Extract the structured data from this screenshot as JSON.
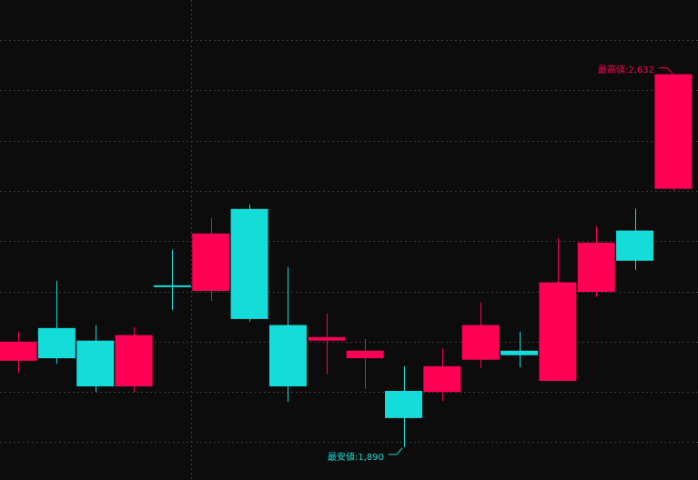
{
  "chart_data": {
    "type": "candlestick",
    "ylim": [
      1850,
      2780
    ],
    "grid": true,
    "grid_values": [
      1900,
      2000,
      2100,
      2200,
      2300,
      2400,
      2500,
      2600,
      2700
    ],
    "colors": {
      "up": "#ff0055",
      "down": "#14dcd8",
      "background": "#0c0c0c",
      "grid": "#3a3a3a"
    },
    "candles": [
      {
        "o": 2062,
        "h": 2120,
        "l": 2038,
        "c": 2100
      },
      {
        "o": 2127,
        "h": 2221,
        "l": 2056,
        "c": 2067
      },
      {
        "o": 2102,
        "h": 2133,
        "l": 2000,
        "c": 2011
      },
      {
        "o": 2011,
        "h": 2129,
        "l": 1999,
        "c": 2113
      },
      {
        "o": 2212,
        "h": 2283,
        "l": 2163,
        "c": 2209
      },
      {
        "o": 2201,
        "h": 2346,
        "l": 2181,
        "c": 2315
      },
      {
        "o": 2364,
        "h": 2373,
        "l": 2140,
        "c": 2145
      },
      {
        "o": 2133,
        "h": 2248,
        "l": 1980,
        "c": 2011
      },
      {
        "o": 2102,
        "h": 2156,
        "l": 2035,
        "c": 2109
      },
      {
        "o": 2067,
        "h": 2105,
        "l": 2006,
        "c": 2082
      },
      {
        "o": 2002,
        "h": 2051,
        "l": 1890,
        "c": 1948
      },
      {
        "o": 2000,
        "h": 2087,
        "l": 1982,
        "c": 2051
      },
      {
        "o": 2064,
        "h": 2178,
        "l": 2047,
        "c": 2133
      },
      {
        "o": 2082,
        "h": 2120,
        "l": 2049,
        "c": 2073
      },
      {
        "o": 2022,
        "h": 2306,
        "l": 2022,
        "c": 2218
      },
      {
        "o": 2199,
        "h": 2330,
        "l": 2189,
        "c": 2297
      },
      {
        "o": 2321,
        "h": 2364,
        "l": 2243,
        "c": 2261
      },
      {
        "o": 2404,
        "h": 2632,
        "l": 2400,
        "c": 2632
      }
    ],
    "annotations": {
      "high": {
        "label": "最高値:2,632",
        "value": 2632
      },
      "low": {
        "label": "最安値:1,890",
        "value": 1890
      }
    }
  }
}
